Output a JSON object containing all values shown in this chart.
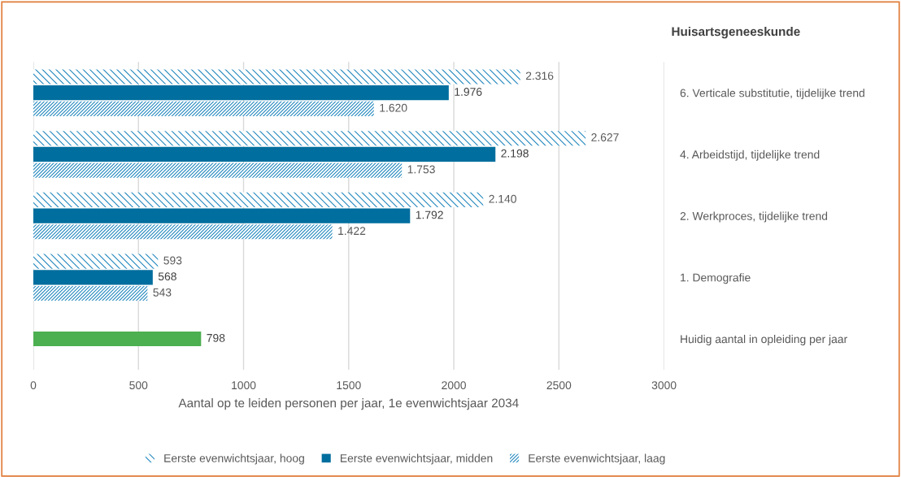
{
  "chart_data": {
    "type": "bar",
    "orientation": "horizontal",
    "title": "Huisartsgeneeskunde",
    "xlabel": "Aantal op te leiden personen per jaar, 1e evenwichtsjaar 2034",
    "categories": [
      "6. Verticale substitutie, tijdelijke trend",
      "4. Arbeidstijd, tijdelijke trend",
      "2. Werkproces, tijdelijke trend",
      "1. Demografie",
      "Huidig aantal in opleiding per jaar"
    ],
    "series": [
      {
        "name": "Eerste evenwichtsjaar, hoog",
        "color": "#1f86bd",
        "values": [
          2316,
          2627,
          2140,
          593,
          null
        ],
        "value_labels": [
          "2.316",
          "2.627",
          "2.140",
          "593",
          null
        ]
      },
      {
        "name": "Eerste evenwichtsjaar, midden",
        "color": "#006e9e",
        "values": [
          1976,
          2198,
          1792,
          568,
          null
        ],
        "value_labels": [
          "1.976",
          "2.198",
          "1.792",
          "568",
          null
        ]
      },
      {
        "name": "Eerste evenwichtsjaar, laag",
        "color": "#1f86bd",
        "values": [
          1620,
          1753,
          1422,
          543,
          null
        ],
        "value_labels": [
          "1.620",
          "1.753",
          "1.422",
          "543",
          null
        ]
      },
      {
        "color": "#4caf50",
        "values": [
          null,
          null,
          null,
          null,
          798
        ],
        "value_labels": [
          null,
          null,
          null,
          null,
          "798"
        ]
      }
    ],
    "xlim": [
      0,
      3000
    ],
    "xticks": [
      0,
      500,
      1000,
      1500,
      2000,
      2500,
      3000
    ],
    "grid": "x",
    "legend": "bottom"
  }
}
